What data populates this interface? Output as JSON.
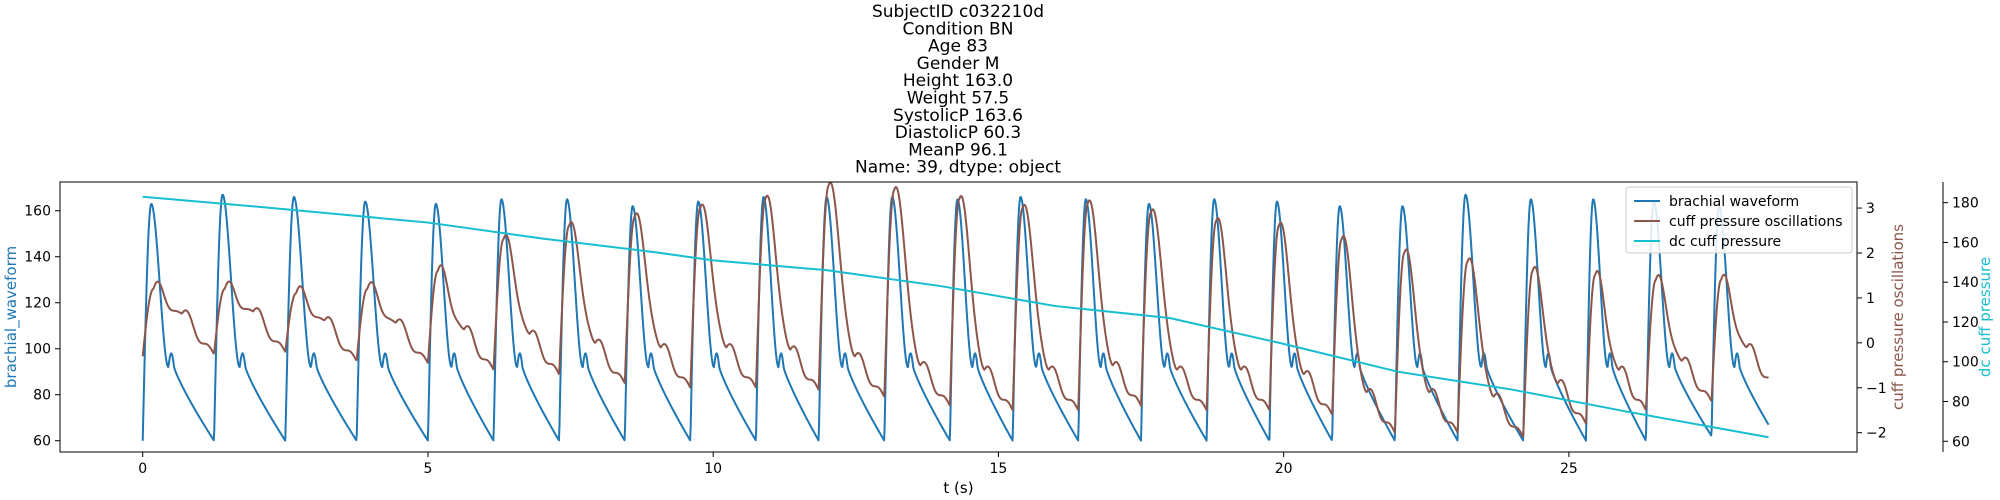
{
  "chart_data": {
    "type": "line",
    "title_lines": [
      "SubjectID     c032210d",
      "Condition            BN",
      "Age                83",
      "Gender                 M",
      "Height          163.0",
      "Weight           57.5",
      "SystolicP        163.6",
      "DiastolicP        60.3",
      "MeanP            96.1",
      "Name: 39, dtype: object"
    ],
    "xlabel": "t (s)",
    "xlim": [
      -1.45,
      30.05
    ],
    "xticks": [
      0,
      5,
      10,
      15,
      20,
      25
    ],
    "axes": {
      "left": {
        "label": "brachial_waveform",
        "ylim": [
          55.1,
          172.5
        ],
        "ticks": [
          60,
          80,
          100,
          120,
          140,
          160
        ],
        "color": "#1f77b4"
      },
      "right1": {
        "label": "cuff pressure oscillations",
        "ylim": [
          -2.43,
          3.58
        ],
        "ticks": [
          -2,
          -1,
          0,
          1,
          2,
          3
        ],
        "color": "#8c564b"
      },
      "right2": {
        "label": "dc cuff pressure",
        "ylim": [
          54.6,
          190.4
        ],
        "ticks": [
          60,
          80,
          100,
          120,
          140,
          160,
          180
        ],
        "color": "#17becf"
      }
    },
    "legend_position": "upper-right",
    "series": [
      {
        "name": "brachial waveform",
        "axis": "left",
        "color": "#1f77b4",
        "t_range": [
          0,
          28.5
        ],
        "beat_times": [
          0.0,
          1.25,
          2.5,
          3.75,
          5.0,
          6.15,
          7.3,
          8.45,
          9.6,
          10.75,
          11.85,
          13.0,
          14.15,
          15.25,
          16.4,
          17.5,
          18.65,
          19.75,
          20.85,
          21.95,
          23.05,
          24.2,
          25.3,
          26.35,
          27.5
        ],
        "beat_peaks": [
          163,
          167,
          166,
          164,
          163,
          165,
          165,
          162,
          164,
          166,
          166,
          166,
          165,
          166,
          165,
          163,
          165,
          164,
          162,
          162,
          167,
          165,
          165,
          164,
          162
        ],
        "beat_troughs": [
          60,
          60,
          60,
          60,
          60,
          60,
          60,
          60,
          60,
          60,
          60,
          60,
          60,
          60,
          60,
          60,
          60,
          60,
          60,
          60,
          60,
          60,
          60,
          60,
          62
        ],
        "dicrotic_level": 100,
        "end_value": 63
      },
      {
        "name": "cuff pressure oscillations",
        "axis": "right1",
        "color": "#8c564b",
        "t_range": [
          0,
          28.5
        ],
        "beat_peaks": [
          1.2,
          1.2,
          1.1,
          1.2,
          1.6,
          2.3,
          2.6,
          2.8,
          3.0,
          3.2,
          3.5,
          3.4,
          3.2,
          3.0,
          3.1,
          2.9,
          2.7,
          2.6,
          2.3,
          2.0,
          1.8,
          1.6,
          1.5,
          1.4,
          1.4
        ],
        "beat_troughs": [
          -0.25,
          -0.2,
          -0.4,
          -0.45,
          -0.6,
          -0.7,
          -0.9,
          -1.0,
          -1.0,
          -1.05,
          -1.2,
          -1.4,
          -1.5,
          -1.5,
          -1.4,
          -1.5,
          -1.5,
          -1.6,
          -2.0,
          -2.0,
          -2.1,
          -1.8,
          -1.5,
          -1.3,
          -1.0
        ],
        "start_value": -0.3,
        "end_value": -1.0
      },
      {
        "name": "dc cuff pressure",
        "axis": "right2",
        "color": "#17becf",
        "x": [
          0,
          2,
          5,
          7,
          9,
          10,
          12,
          14,
          16,
          18,
          20,
          22,
          24,
          26,
          28.5
        ],
        "y": [
          183,
          178,
          170,
          162,
          155,
          151,
          146,
          138,
          128,
          122,
          109,
          95,
          86,
          75,
          62
        ]
      }
    ]
  }
}
